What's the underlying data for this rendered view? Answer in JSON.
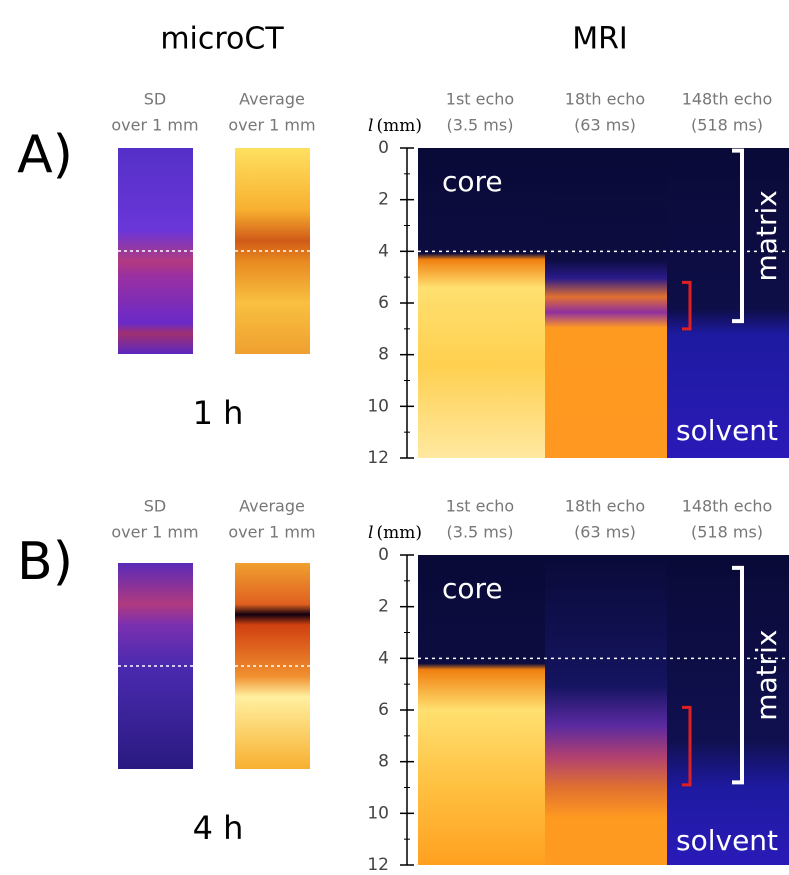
{
  "headers": {
    "microct": "microCT",
    "mri": "MRI"
  },
  "panels": [
    {
      "label": "A)",
      "time": "1 h",
      "microct_columns": [
        {
          "line1": "SD",
          "line2": "over 1 mm"
        },
        {
          "line1": "Average",
          "line2": "over 1 mm"
        }
      ],
      "mri_columns": [
        {
          "line1": "1st echo",
          "line2": "(3.5 ms)"
        },
        {
          "line1": "18th echo",
          "line2": "(63 ms)"
        },
        {
          "line1": "148th echo",
          "line2": "(518 ms)"
        }
      ],
      "axis_label": {
        "var": "l",
        "unit": "(mm)"
      },
      "ticks": [
        0,
        2,
        4,
        6,
        8,
        10,
        12
      ],
      "regions": {
        "core": "core",
        "solvent": "solvent",
        "matrix": "matrix"
      }
    },
    {
      "label": "B)",
      "time": "4 h",
      "microct_columns": [
        {
          "line1": "SD",
          "line2": "over 1 mm"
        },
        {
          "line1": "Average",
          "line2": "over 1 mm"
        }
      ],
      "mri_columns": [
        {
          "line1": "1st echo",
          "line2": "(3.5 ms)"
        },
        {
          "line1": "18th echo",
          "line2": "(63 ms)"
        },
        {
          "line1": "148th echo",
          "line2": "(518 ms)"
        }
      ],
      "axis_label": {
        "var": "l",
        "unit": "(mm)"
      },
      "ticks": [
        0,
        2,
        4,
        6,
        8,
        10,
        12
      ],
      "regions": {
        "core": "core",
        "solvent": "solvent",
        "matrix": "matrix"
      }
    }
  ]
}
